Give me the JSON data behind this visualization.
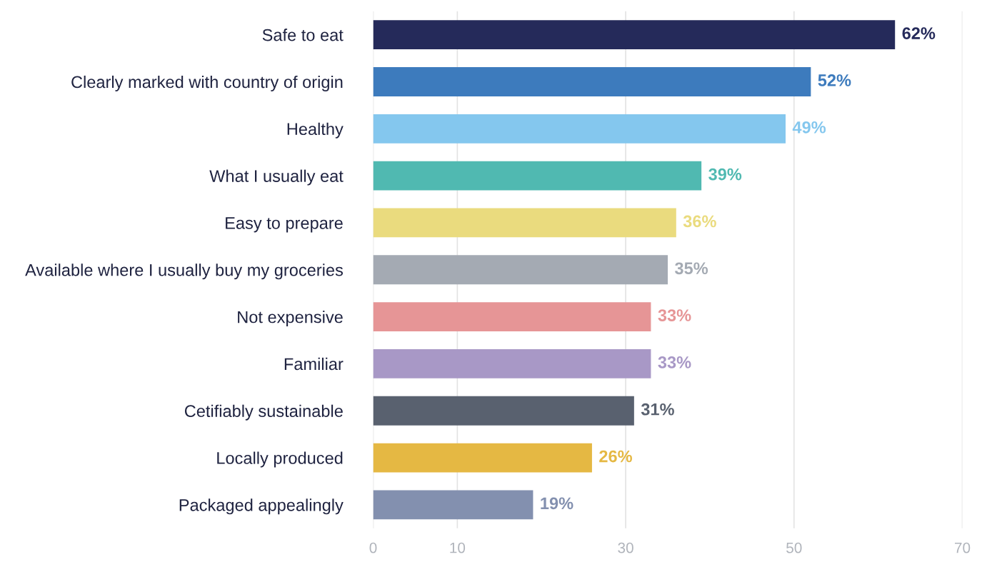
{
  "chart_data": {
    "type": "bar",
    "orientation": "horizontal",
    "categories": [
      "Safe to eat",
      "Clearly marked with country of origin",
      "Healthy",
      "What I usually eat",
      "Easy to prepare",
      "Available where I usually buy my groceries",
      "Not expensive",
      "Familiar",
      "Cetifiably sustainable",
      "Locally produced",
      "Packaged appealingly"
    ],
    "values": [
      62,
      52,
      49,
      39,
      36,
      35,
      33,
      33,
      31,
      26,
      19
    ],
    "value_labels": [
      "62%",
      "52%",
      "49%",
      "39%",
      "36%",
      "35%",
      "33%",
      "33%",
      "31%",
      "26%",
      "19%"
    ],
    "colors": [
      "#252a5a",
      "#3d7bbd",
      "#84c7ee",
      "#50b9b1",
      "#eadb7e",
      "#a4aab3",
      "#e69596",
      "#a898c6",
      "#59616f",
      "#e5b843",
      "#8390af"
    ],
    "xlim": [
      0,
      70
    ],
    "xticks": [
      0,
      10,
      30,
      50,
      70
    ],
    "grid": "x"
  }
}
